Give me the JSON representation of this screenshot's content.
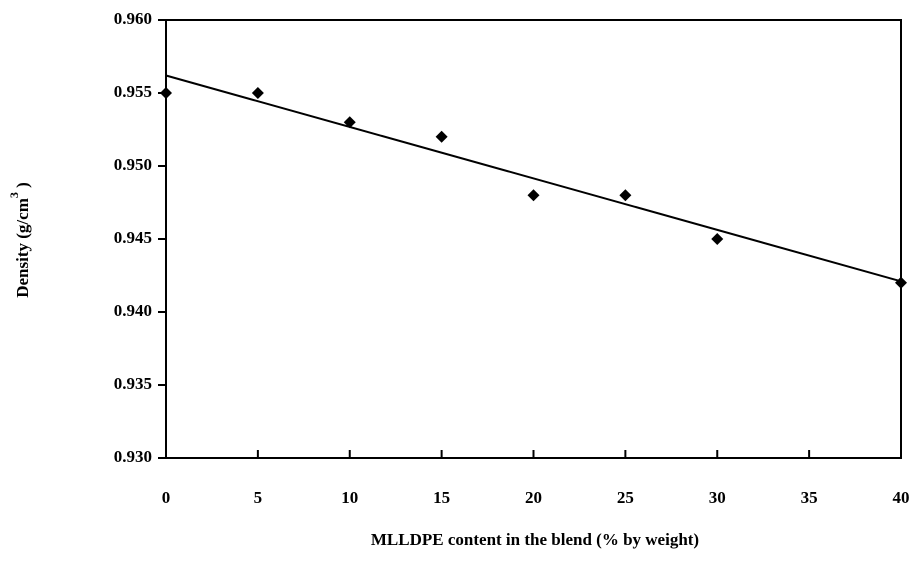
{
  "chart_data": {
    "type": "scatter",
    "x_label": "MLLDPE content in the blend (% by weight)",
    "y_label": {
      "text": "Density (g/cm",
      "superscript": "3",
      "close": " )"
    },
    "series": [
      {
        "color": "#000000",
        "x": [
          0,
          5,
          10,
          15,
          20,
          25,
          30,
          40
        ],
        "values": [
          0.955,
          0.955,
          0.953,
          0.952,
          0.948,
          0.948,
          0.945,
          0.942
        ]
      }
    ],
    "trendline": {
      "color": "#000000",
      "x": [
        0,
        40
      ],
      "values": [
        0.9562,
        0.9421
      ]
    },
    "xlim": [
      0,
      40
    ],
    "xticks": [
      0,
      5,
      10,
      15,
      20,
      25,
      30,
      35,
      40
    ],
    "ylim": [
      0.93,
      0.96
    ],
    "yticks": [
      {
        "value": 0.93,
        "label": "0.930"
      },
      0.935,
      {
        "value": 0.94,
        "label": "0.940"
      },
      0.945,
      {
        "value": 0.95,
        "label": "0.950"
      },
      0.955,
      {
        "value": 0.96,
        "label": "0.960"
      }
    ],
    "grid": false
  }
}
